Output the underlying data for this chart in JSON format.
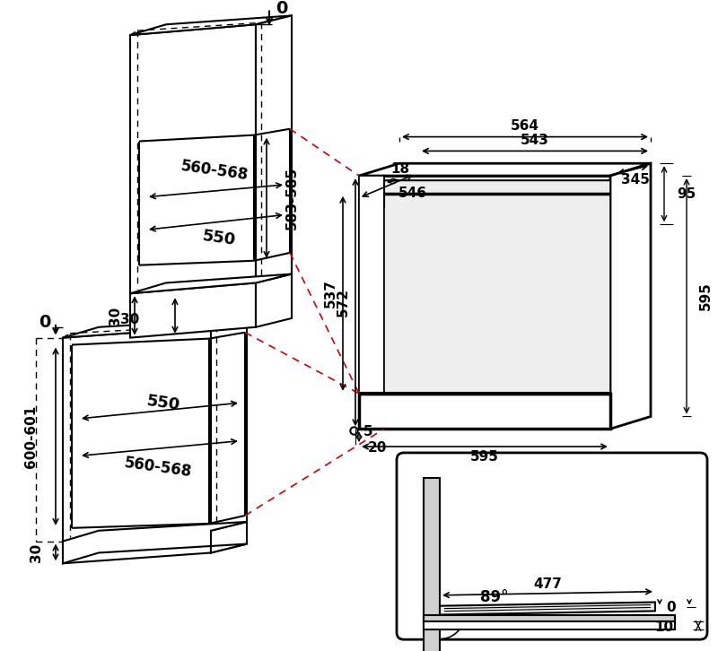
{
  "bg": "#ffffff",
  "lc": "#000000",
  "rc": "#cc0000",
  "gf": "#b8b8b8",
  "lgf": "#d0d0d0",
  "labels": {
    "d0_top": "0",
    "d0_left": "0",
    "d30_top": "30",
    "d30_bot": "30",
    "d583": "583-585",
    "d560top": "560-568",
    "d550top": "550",
    "d600": "600-601",
    "d560bot": "560-568",
    "d550bot": "550",
    "d564": "564",
    "d543": "543",
    "d546": "546",
    "d345": "345",
    "d18": "18",
    "d95": "95",
    "d537": "537",
    "d572": "572",
    "d595r": "595",
    "d595b": "595",
    "d5": "5",
    "d20": "20",
    "d477": "477",
    "d89": "89°",
    "d0door": "0",
    "d10": "10"
  }
}
